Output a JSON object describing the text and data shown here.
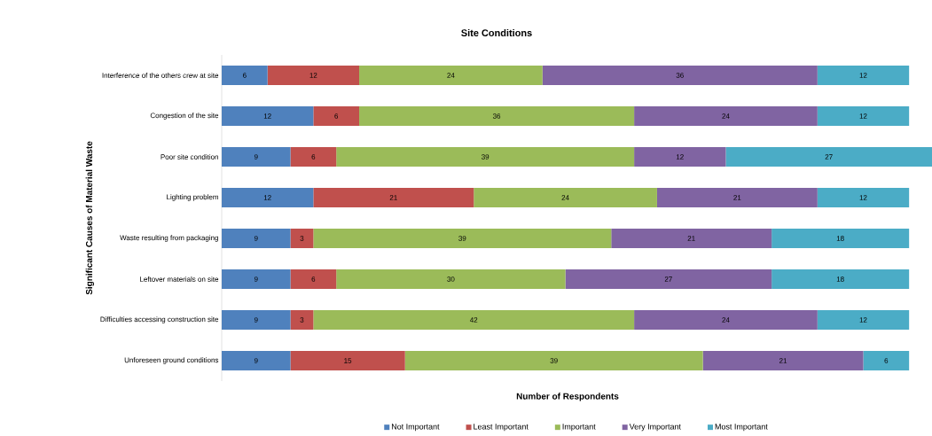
{
  "chart_data": {
    "type": "bar",
    "orientation": "horizontal",
    "stacked": true,
    "title": "Site Conditions",
    "xlabel": "Number of Respondents",
    "ylabel": "Significant Causes of Material Waste",
    "categories": [
      "Interference of the others crew at site",
      "Congestion of the site",
      "Poor site condition",
      "Lighting problem",
      "Waste resulting from packaging",
      "Leftover materials on site",
      "Difficulties accessing construction site",
      "Unforeseen ground conditions"
    ],
    "series": [
      {
        "name": "Not Important",
        "color": "#4f81bd",
        "values": [
          6,
          12,
          9,
          12,
          9,
          9,
          9,
          9
        ]
      },
      {
        "name": "Least Important",
        "color": "#c0504d",
        "values": [
          12,
          6,
          6,
          21,
          3,
          6,
          3,
          15
        ]
      },
      {
        "name": "Important",
        "color": "#9bbb59",
        "values": [
          24,
          36,
          39,
          24,
          39,
          30,
          42,
          39
        ]
      },
      {
        "name": "Very Important",
        "color": "#8064a2",
        "values": [
          36,
          24,
          12,
          21,
          21,
          27,
          24,
          21
        ]
      },
      {
        "name": "Most Important",
        "color": "#4bacc6",
        "values": [
          12,
          12,
          27,
          12,
          18,
          18,
          12,
          6
        ]
      }
    ],
    "data_labels": true,
    "legend": "bottom",
    "tick_labels": "y"
  }
}
